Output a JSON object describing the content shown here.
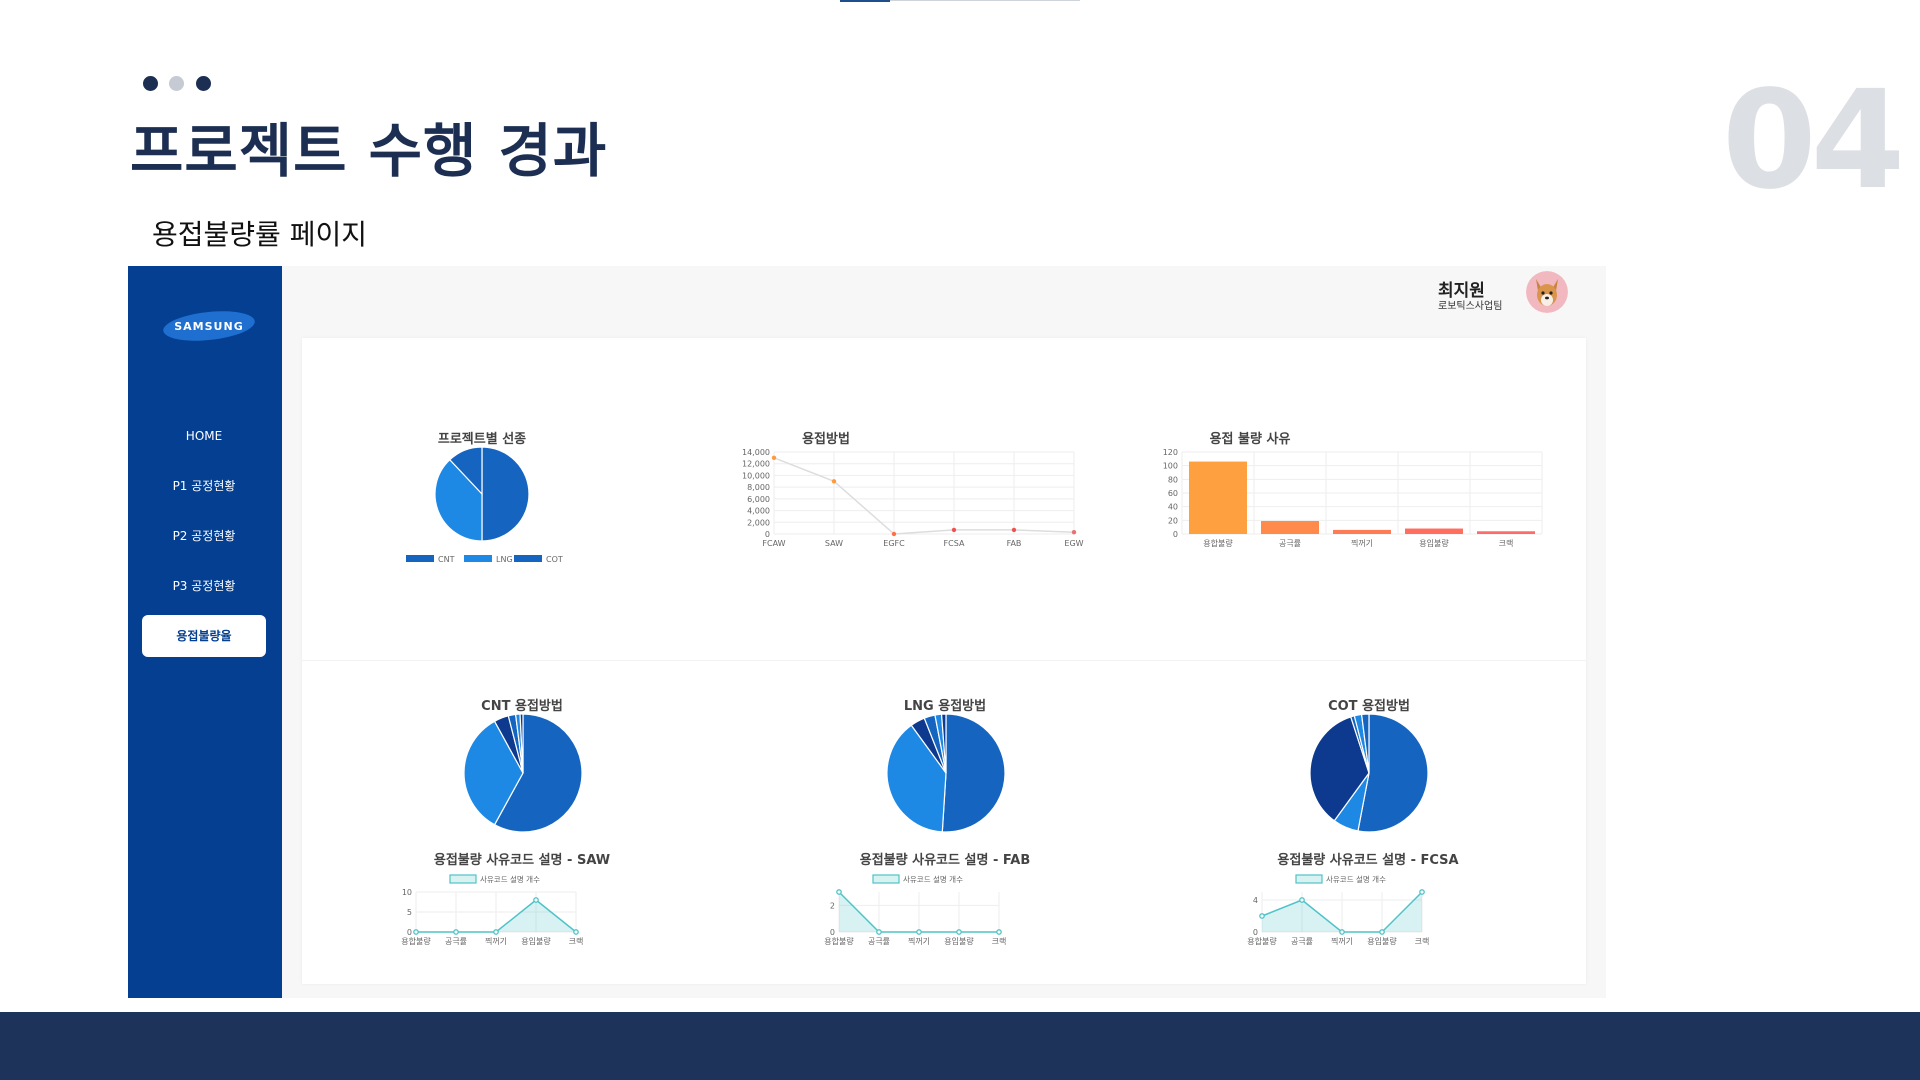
{
  "slide": {
    "title": "프로젝트 수행 경과",
    "number": "04",
    "subtitle": "용접불량률 페이지",
    "dot_colors": [
      "#1c2f52",
      "#c5cad3",
      "#1c2f52"
    ]
  },
  "app": {
    "logo_text": "SAMSUNG",
    "nav": [
      "HOME",
      "P1 공정현황",
      "P2 공정현황",
      "P3 공정현황",
      "용접불량율"
    ],
    "active_nav_index": 4,
    "user": {
      "name": "최지원",
      "team": "로보틱스사업팀"
    },
    "colors": {
      "sidebar": "#053f91",
      "blue_dark": "#1565c0",
      "blue_light": "#1e88e5",
      "navy": "#0d3a8e",
      "teal": "#4fc3c7"
    }
  },
  "charts": {
    "project_pie": {
      "title": "프로젝트별 선종",
      "type": "pie",
      "legend": [
        "CNT",
        "LNG",
        "COT"
      ],
      "values": [
        50,
        38,
        12
      ]
    },
    "method_line": {
      "title": "용접방법",
      "type": "line",
      "x": [
        "FCAW",
        "SAW",
        "EGFC",
        "FCSA",
        "FAB",
        "EGW"
      ],
      "y": [
        13000,
        9000,
        0,
        700,
        700,
        300
      ],
      "y_ticks": [
        "0",
        "2,000",
        "4,000",
        "6,000",
        "8,000",
        "10,000",
        "12,000",
        "14,000"
      ],
      "ylim": [
        0,
        14000
      ]
    },
    "defect_bar": {
      "title": "용접 불량 사유",
      "type": "bar",
      "categories": [
        "용합불량",
        "공극률",
        "찍꺼기",
        "용입불량",
        "크랙"
      ],
      "values": [
        106,
        19,
        6,
        8,
        4
      ],
      "y_ticks": [
        "0",
        "20",
        "40",
        "60",
        "80",
        "100",
        "120"
      ],
      "ylim": [
        0,
        120
      ]
    },
    "cnt_pie": {
      "title": "CNT 용접방법",
      "type": "pie",
      "values": [
        58,
        34,
        4,
        2,
        1.2,
        0.8
      ]
    },
    "lng_pie": {
      "title": "LNG 용접방법",
      "type": "pie",
      "values": [
        51,
        39,
        4,
        3,
        1.8,
        1.2
      ]
    },
    "cot_pie": {
      "title": "COT 용접방법",
      "type": "pie",
      "values": [
        53,
        7,
        35,
        1,
        2,
        2
      ]
    },
    "saw_area": {
      "title": "용접불량 사유코드 설명 - SAW",
      "legend": "사유코드 설명 개수",
      "categories": [
        "용합불량",
        "공극률",
        "찍꺼기",
        "용입불량",
        "크랙"
      ],
      "values": [
        0,
        0,
        0,
        8,
        0
      ],
      "y_ticks": [
        "0",
        "5",
        "10"
      ],
      "ylim": [
        0,
        10
      ]
    },
    "fab_area": {
      "title": "용접불량 사유코드 설명 - FAB",
      "legend": "사유코드 설명 개수",
      "categories": [
        "용합불량",
        "공극률",
        "찍꺼기",
        "용입불량",
        "크랙"
      ],
      "values": [
        3,
        0,
        0,
        0,
        0
      ],
      "y_ticks": [
        "0",
        "2"
      ],
      "ylim": [
        0,
        3
      ]
    },
    "fcsa_area": {
      "title": "용접불량 사유코드 설명 - FCSA",
      "legend": "사유코드 설명 개수",
      "categories": [
        "용합불량",
        "공극률",
        "찍꺼기",
        "용입불량",
        "크랙"
      ],
      "values": [
        2,
        4,
        0,
        0,
        5
      ],
      "y_ticks": [
        "0",
        "4"
      ],
      "ylim": [
        0,
        5
      ]
    }
  }
}
